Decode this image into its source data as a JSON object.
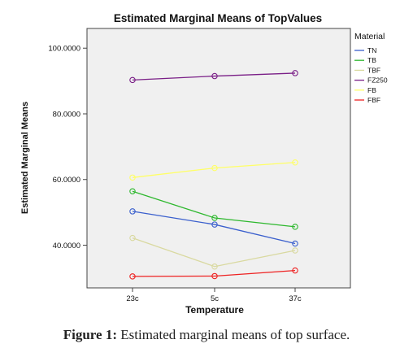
{
  "chart_data": {
    "type": "line",
    "title": "Estimated Marginal Means of TopValues",
    "xlabel": "Temperature",
    "ylabel": "Estimated Marginal Means",
    "categories": [
      "23c",
      "5c",
      "37c"
    ],
    "yticks": [
      "40.0000",
      "60.0000",
      "80.0000",
      "100.0000"
    ],
    "ytick_values": [
      40,
      60,
      80,
      100
    ],
    "ylim": [
      27,
      106
    ],
    "grid": false,
    "legend_title": "Material",
    "legend_position": "right",
    "series": [
      {
        "name": "TN",
        "color": "#3a5fcd",
        "values": [
          50.3,
          46.3,
          40.5
        ]
      },
      {
        "name": "TB",
        "color": "#2eb82e",
        "values": [
          56.4,
          48.3,
          45.6
        ]
      },
      {
        "name": "TBF",
        "color": "#d9d9a0",
        "values": [
          42.2,
          33.5,
          38.4
        ]
      },
      {
        "name": "FZ250",
        "color": "#7a1f87",
        "values": [
          90.3,
          91.5,
          92.4
        ]
      },
      {
        "name": "FB",
        "color": "#ffff66",
        "values": [
          60.6,
          63.5,
          65.2
        ]
      },
      {
        "name": "FBF",
        "color": "#ee2222",
        "values": [
          30.5,
          30.6,
          32.3
        ]
      }
    ]
  },
  "caption": {
    "label": "Figure 1:",
    "text": " Estimated marginal means of top surface."
  }
}
